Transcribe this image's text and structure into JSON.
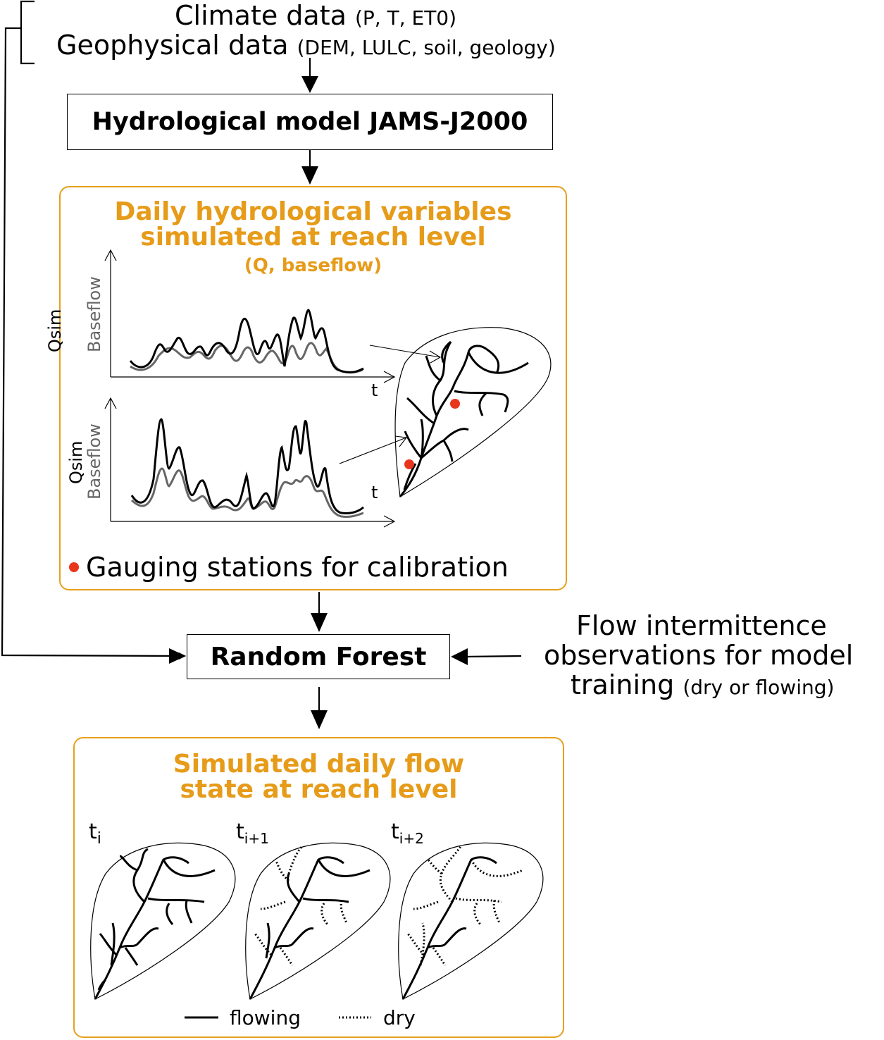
{
  "inputs": {
    "climate_label": "Climate data",
    "climate_detail": "(P, T, ET0)",
    "geo_label": "Geophysical data",
    "geo_detail": "(DEM, LULC, soil, geology)"
  },
  "hydro_model": {
    "label": "Hydrological model JAMS-J2000"
  },
  "daily_vars": {
    "title_line1": "Daily hydrological variables",
    "title_line2": "simulated at reach level",
    "subtitle": "(Q, baseflow)",
    "axis_qsim": "Qsim",
    "axis_baseflow": "Baseflow",
    "axis_t": "t",
    "legend_gauging": "Gauging stations for calibration"
  },
  "random_forest": {
    "label": "Random Forest"
  },
  "observations": {
    "line1": "Flow intermittence",
    "line2": "observations for model",
    "line3": "training",
    "detail": "(dry or flowing)"
  },
  "output": {
    "title_line1": "Simulated daily flow",
    "title_line2": "state at reach level",
    "time_labels": [
      {
        "base": "t",
        "sub": "i"
      },
      {
        "base": "t",
        "sub": "i+1"
      },
      {
        "base": "t",
        "sub": "i+2"
      }
    ],
    "legend_flowing": "flowing",
    "legend_dry": "dry"
  },
  "colors": {
    "accent_orange": "#e69b19",
    "gauging_red": "#e8361c",
    "baseflow_gray": "#666666"
  }
}
